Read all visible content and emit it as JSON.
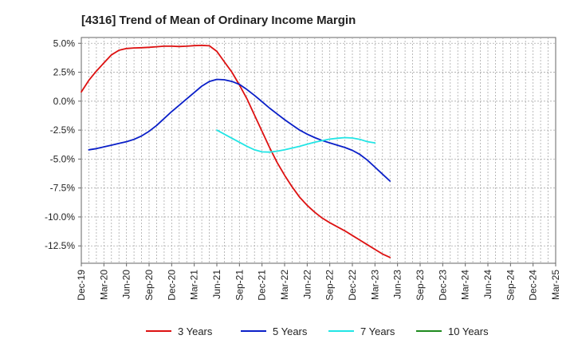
{
  "chart_data": {
    "type": "line",
    "title": "[4316]  Trend of Mean of Ordinary Income Margin",
    "xlabel": "",
    "ylabel": "",
    "x_ticks": [
      "Dec-19",
      "Mar-20",
      "Jun-20",
      "Sep-20",
      "Dec-20",
      "Mar-21",
      "Jun-21",
      "Sep-21",
      "Dec-21",
      "Mar-22",
      "Jun-22",
      "Sep-22",
      "Dec-22",
      "Mar-23",
      "Jun-23",
      "Sep-23",
      "Dec-23",
      "Mar-24",
      "Jun-24",
      "Sep-24",
      "Dec-24",
      "Mar-25"
    ],
    "y_ticks": [
      "5.0%",
      "2.5%",
      "0.0%",
      "-2.5%",
      "-5.0%",
      "-7.5%",
      "-10.0%",
      "-12.5%"
    ],
    "y_tick_values": [
      5.0,
      2.5,
      0.0,
      -2.5,
      -5.0,
      -7.5,
      -10.0,
      -12.5
    ],
    "ylim": [
      -14.0,
      5.5
    ],
    "grid": true,
    "legend_position": "bottom",
    "series": [
      {
        "name": "3 Years",
        "color": "#dd1111",
        "start_index": 0,
        "values": [
          0.8,
          1.8,
          2.6,
          3.3,
          4.0,
          4.4,
          4.55,
          4.6,
          4.62,
          4.65,
          4.7,
          4.75,
          4.75,
          4.72,
          4.75,
          4.8,
          4.82,
          4.78,
          4.3,
          3.4,
          2.5,
          1.4,
          0.2,
          -1.2,
          -2.6,
          -4.0,
          -5.3,
          -6.4,
          -7.4,
          -8.3,
          -9.0,
          -9.6,
          -10.1,
          -10.5,
          -10.85,
          -11.2,
          -11.6,
          -12.0,
          -12.4,
          -12.8,
          -13.2,
          -13.5
        ]
      },
      {
        "name": "5 Years",
        "color": "#0a1fc8",
        "start_index": 1,
        "values": [
          -4.2,
          -4.1,
          -3.95,
          -3.8,
          -3.65,
          -3.5,
          -3.3,
          -3.0,
          -2.6,
          -2.1,
          -1.5,
          -0.9,
          -0.35,
          0.2,
          0.75,
          1.3,
          1.7,
          1.88,
          1.85,
          1.7,
          1.45,
          1.0,
          0.5,
          -0.05,
          -0.6,
          -1.1,
          -1.6,
          -2.05,
          -2.5,
          -2.85,
          -3.15,
          -3.4,
          -3.6,
          -3.8,
          -4.0,
          -4.25,
          -4.6,
          -5.1,
          -5.7,
          -6.3,
          -6.9
        ]
      },
      {
        "name": "7 Years",
        "color": "#22e5e5",
        "start_index": 18,
        "values": [
          -2.5,
          -2.85,
          -3.2,
          -3.55,
          -3.9,
          -4.2,
          -4.38,
          -4.4,
          -4.32,
          -4.2,
          -4.05,
          -3.9,
          -3.72,
          -3.55,
          -3.4,
          -3.28,
          -3.2,
          -3.15,
          -3.18,
          -3.3,
          -3.5,
          -3.6
        ]
      },
      {
        "name": "10 Years",
        "color": "#1e8a1e",
        "start_index": 0,
        "values": []
      }
    ]
  }
}
